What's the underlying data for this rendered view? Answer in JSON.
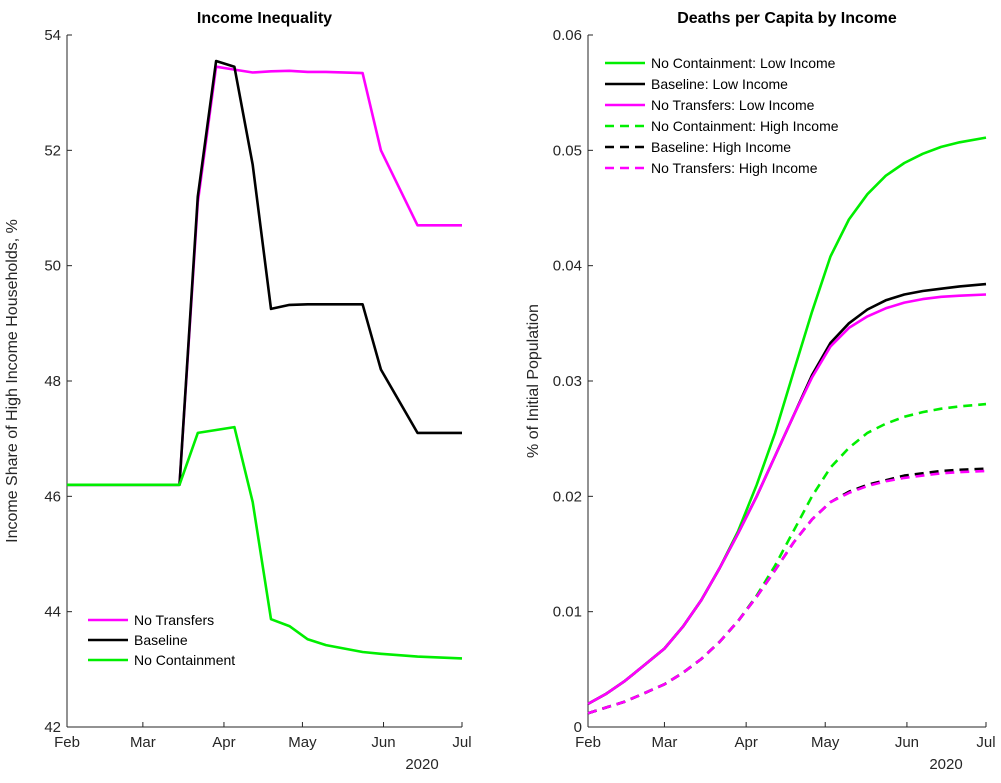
{
  "chart_data": [
    {
      "type": "line",
      "title": "Income Inequality",
      "xlabel": "",
      "ylabel": "Income Share of High Income Households, %",
      "x_tick_labels": [
        "Feb",
        "Mar",
        "Apr",
        "May",
        "Jun",
        "Jul"
      ],
      "x_secondary_label": "2020",
      "xlim": [
        "2020-02-01",
        "2020-07-01"
      ],
      "ylim": [
        42,
        54
      ],
      "y_ticks": [
        42,
        44,
        46,
        48,
        50,
        52,
        54
      ],
      "grid": false,
      "legend_position": "bottom-left",
      "series": [
        {
          "name": "No Transfers",
          "color": "#ff00ff",
          "dash": "solid",
          "x": [
            "2020-02-01",
            "2020-03-15",
            "2020-03-22",
            "2020-03-29",
            "2020-04-05",
            "2020-04-12",
            "2020-04-19",
            "2020-04-26",
            "2020-05-03",
            "2020-05-10",
            "2020-05-24",
            "2020-05-31",
            "2020-06-14",
            "2020-07-01"
          ],
          "y": [
            46.2,
            46.2,
            51.1,
            53.45,
            53.4,
            53.35,
            53.37,
            53.38,
            53.36,
            53.36,
            53.34,
            52.0,
            50.7,
            50.7
          ]
        },
        {
          "name": "Baseline",
          "color": "#000000",
          "dash": "solid",
          "x": [
            "2020-02-01",
            "2020-03-15",
            "2020-03-22",
            "2020-03-29",
            "2020-04-05",
            "2020-04-12",
            "2020-04-19",
            "2020-04-26",
            "2020-05-03",
            "2020-05-10",
            "2020-05-24",
            "2020-05-31",
            "2020-06-14",
            "2020-07-01"
          ],
          "y": [
            46.2,
            46.2,
            51.2,
            53.55,
            53.45,
            51.75,
            49.25,
            49.32,
            49.33,
            49.33,
            49.33,
            48.2,
            47.1,
            47.1
          ]
        },
        {
          "name": "No Containment",
          "color": "#00ee00",
          "dash": "solid",
          "x": [
            "2020-02-01",
            "2020-03-15",
            "2020-03-22",
            "2020-03-29",
            "2020-04-05",
            "2020-04-12",
            "2020-04-19",
            "2020-04-26",
            "2020-05-03",
            "2020-05-10",
            "2020-05-24",
            "2020-05-31",
            "2020-06-14",
            "2020-07-01"
          ],
          "y": [
            46.2,
            46.2,
            47.1,
            47.15,
            47.2,
            45.9,
            43.87,
            43.75,
            43.52,
            43.42,
            43.3,
            43.27,
            43.22,
            43.19
          ]
        }
      ]
    },
    {
      "type": "line",
      "title": "Deaths per Capita by Income",
      "xlabel": "",
      "ylabel": "% of Initial Population",
      "x_tick_labels": [
        "Feb",
        "Mar",
        "Apr",
        "May",
        "Jun",
        "Jul"
      ],
      "x_secondary_label": "2020",
      "xlim": [
        "2020-02-01",
        "2020-07-01"
      ],
      "ylim": [
        0,
        0.06
      ],
      "y_ticks": [
        0,
        0.01,
        0.02,
        0.03,
        0.04,
        0.05,
        0.06
      ],
      "y_tick_labels": [
        "0",
        "0.01",
        "0.02",
        "0.03",
        "0.04",
        "0.05",
        "0.06"
      ],
      "grid": false,
      "legend_position": "top-left",
      "series": [
        {
          "name": "No Containment: Low Income",
          "color": "#00ee00",
          "dash": "solid",
          "x": [
            "2020-02-01",
            "2020-02-08",
            "2020-02-15",
            "2020-02-22",
            "2020-03-01",
            "2020-03-08",
            "2020-03-15",
            "2020-03-22",
            "2020-03-29",
            "2020-04-05",
            "2020-04-12",
            "2020-04-19",
            "2020-04-26",
            "2020-05-03",
            "2020-05-10",
            "2020-05-17",
            "2020-05-24",
            "2020-05-31",
            "2020-06-07",
            "2020-06-14",
            "2020-06-21",
            "2020-07-01"
          ],
          "y": [
            0.002,
            0.0029,
            0.004,
            0.0053,
            0.0068,
            0.0087,
            0.011,
            0.0138,
            0.017,
            0.021,
            0.0255,
            0.0308,
            0.036,
            0.0408,
            0.044,
            0.0462,
            0.0478,
            0.0489,
            0.0497,
            0.0503,
            0.0507,
            0.0511
          ]
        },
        {
          "name": "Baseline: Low Income",
          "color": "#000000",
          "dash": "solid",
          "x": [
            "2020-02-01",
            "2020-02-08",
            "2020-02-15",
            "2020-02-22",
            "2020-03-01",
            "2020-03-08",
            "2020-03-15",
            "2020-03-22",
            "2020-03-29",
            "2020-04-05",
            "2020-04-12",
            "2020-04-19",
            "2020-04-26",
            "2020-05-03",
            "2020-05-10",
            "2020-05-17",
            "2020-05-24",
            "2020-05-31",
            "2020-06-07",
            "2020-06-14",
            "2020-06-21",
            "2020-07-01"
          ],
          "y": [
            0.002,
            0.0029,
            0.004,
            0.0053,
            0.0068,
            0.0087,
            0.011,
            0.0138,
            0.0168,
            0.02,
            0.0235,
            0.027,
            0.0305,
            0.0333,
            0.035,
            0.0362,
            0.037,
            0.0375,
            0.0378,
            0.038,
            0.0382,
            0.0384
          ]
        },
        {
          "name": "No Transfers: Low Income",
          "color": "#ff00ff",
          "dash": "solid",
          "x": [
            "2020-02-01",
            "2020-02-08",
            "2020-02-15",
            "2020-02-22",
            "2020-03-01",
            "2020-03-08",
            "2020-03-15",
            "2020-03-22",
            "2020-03-29",
            "2020-04-05",
            "2020-04-12",
            "2020-04-19",
            "2020-04-26",
            "2020-05-03",
            "2020-05-10",
            "2020-05-17",
            "2020-05-24",
            "2020-05-31",
            "2020-06-07",
            "2020-06-14",
            "2020-06-21",
            "2020-07-01"
          ],
          "y": [
            0.002,
            0.0029,
            0.004,
            0.0053,
            0.0068,
            0.0087,
            0.011,
            0.0138,
            0.0168,
            0.02,
            0.0235,
            0.027,
            0.0303,
            0.033,
            0.0346,
            0.0356,
            0.0363,
            0.0368,
            0.0371,
            0.0373,
            0.0374,
            0.0375
          ]
        },
        {
          "name": "No Containment: High Income",
          "color": "#00ee00",
          "dash": "dashed",
          "x": [
            "2020-02-01",
            "2020-02-08",
            "2020-02-15",
            "2020-02-22",
            "2020-03-01",
            "2020-03-08",
            "2020-03-15",
            "2020-03-22",
            "2020-03-29",
            "2020-04-05",
            "2020-04-12",
            "2020-04-19",
            "2020-04-26",
            "2020-05-03",
            "2020-05-10",
            "2020-05-17",
            "2020-05-24",
            "2020-05-31",
            "2020-06-07",
            "2020-06-14",
            "2020-06-21",
            "2020-07-01"
          ],
          "y": [
            0.0012,
            0.0017,
            0.0022,
            0.0029,
            0.0037,
            0.0047,
            0.0059,
            0.0074,
            0.0092,
            0.0114,
            0.014,
            0.017,
            0.02,
            0.0225,
            0.0242,
            0.0255,
            0.0263,
            0.0269,
            0.0273,
            0.0276,
            0.0278,
            0.028
          ]
        },
        {
          "name": "Baseline: High Income",
          "color": "#000000",
          "dash": "dashed",
          "x": [
            "2020-02-01",
            "2020-02-08",
            "2020-02-15",
            "2020-02-22",
            "2020-03-01",
            "2020-03-08",
            "2020-03-15",
            "2020-03-22",
            "2020-03-29",
            "2020-04-05",
            "2020-04-12",
            "2020-04-19",
            "2020-04-26",
            "2020-05-03",
            "2020-05-10",
            "2020-05-17",
            "2020-05-24",
            "2020-05-31",
            "2020-06-07",
            "2020-06-14",
            "2020-06-21",
            "2020-07-01"
          ],
          "y": [
            0.0012,
            0.0017,
            0.0022,
            0.0029,
            0.0037,
            0.0047,
            0.0059,
            0.0074,
            0.0092,
            0.0113,
            0.0136,
            0.016,
            0.018,
            0.0195,
            0.0204,
            0.021,
            0.0214,
            0.0218,
            0.022,
            0.0222,
            0.0223,
            0.0224
          ]
        },
        {
          "name": "No Transfers: High Income",
          "color": "#ff00ff",
          "dash": "dashed",
          "x": [
            "2020-02-01",
            "2020-02-08",
            "2020-02-15",
            "2020-02-22",
            "2020-03-01",
            "2020-03-08",
            "2020-03-15",
            "2020-03-22",
            "2020-03-29",
            "2020-04-05",
            "2020-04-12",
            "2020-04-19",
            "2020-04-26",
            "2020-05-03",
            "2020-05-10",
            "2020-05-17",
            "2020-05-24",
            "2020-05-31",
            "2020-06-07",
            "2020-06-14",
            "2020-06-21",
            "2020-07-01"
          ],
          "y": [
            0.0012,
            0.0017,
            0.0022,
            0.0029,
            0.0037,
            0.0047,
            0.0059,
            0.0074,
            0.0092,
            0.0113,
            0.0136,
            0.016,
            0.018,
            0.0195,
            0.0203,
            0.0209,
            0.0213,
            0.0216,
            0.0218,
            0.022,
            0.0221,
            0.0222
          ]
        }
      ]
    }
  ]
}
